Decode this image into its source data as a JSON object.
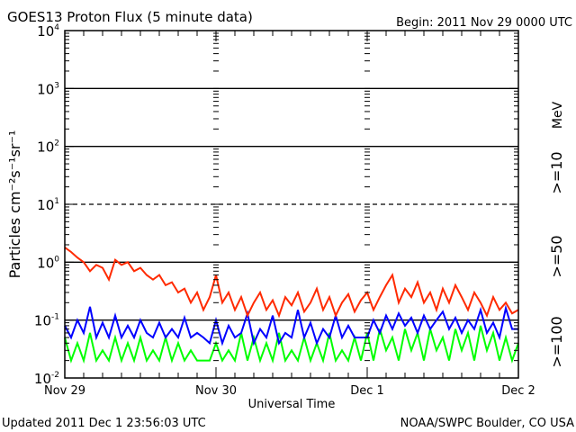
{
  "chart_data": {
    "type": "line",
    "title": "GOES13 Proton Flux (5 minute data)",
    "begin_label": "Begin: 2011 Nov 29 0000 UTC",
    "xlabel": "Universal Time",
    "ylabel": "Particles cm⁻²s⁻¹sr⁻¹",
    "yscale": "log",
    "ylim": [
      0.01,
      10000
    ],
    "y_ticks": [
      {
        "value": 10000,
        "base": "10",
        "exp": "4"
      },
      {
        "value": 1000,
        "base": "10",
        "exp": "3"
      },
      {
        "value": 100,
        "base": "10",
        "exp": "2"
      },
      {
        "value": 10,
        "base": "10",
        "exp": "1"
      },
      {
        "value": 1,
        "base": "10",
        "exp": "0"
      },
      {
        "value": 0.1,
        "base": "10",
        "exp": "-1"
      },
      {
        "value": 0.01,
        "base": "10",
        "exp": "-2"
      }
    ],
    "xlim_hours": [
      0,
      72
    ],
    "x_ticks": [
      {
        "hour": 0,
        "label": "Nov 29"
      },
      {
        "hour": 24,
        "label": "Nov 30"
      },
      {
        "hour": 48,
        "label": "Dec 1"
      },
      {
        "hour": 72,
        "label": "Dec 2"
      }
    ],
    "grid": {
      "solid": [
        1000,
        100,
        1,
        0.1
      ],
      "dashed": [
        10
      ]
    },
    "units_label": "MeV",
    "series": [
      {
        "name": ">=10",
        "color": "#ff2a00",
        "values": [
          1.8,
          1.5,
          1.2,
          1.0,
          0.7,
          0.9,
          0.8,
          0.5,
          1.1,
          0.9,
          1.0,
          0.7,
          0.8,
          0.6,
          0.5,
          0.6,
          0.4,
          0.45,
          0.3,
          0.35,
          0.2,
          0.3,
          0.15,
          0.25,
          0.6,
          0.2,
          0.3,
          0.15,
          0.25,
          0.12,
          0.2,
          0.3,
          0.15,
          0.22,
          0.12,
          0.25,
          0.18,
          0.3,
          0.14,
          0.2,
          0.35,
          0.15,
          0.25,
          0.12,
          0.2,
          0.28,
          0.14,
          0.22,
          0.3,
          0.15,
          0.25,
          0.4,
          0.6,
          0.2,
          0.35,
          0.25,
          0.45,
          0.2,
          0.3,
          0.15,
          0.35,
          0.2,
          0.4,
          0.25,
          0.15,
          0.3,
          0.2,
          0.12,
          0.25,
          0.15,
          0.2,
          0.13,
          0.15
        ]
      },
      {
        "name": ">=50",
        "color": "#0000ff",
        "values": [
          0.08,
          0.05,
          0.1,
          0.06,
          0.17,
          0.05,
          0.09,
          0.05,
          0.12,
          0.05,
          0.08,
          0.05,
          0.1,
          0.06,
          0.05,
          0.09,
          0.05,
          0.07,
          0.05,
          0.11,
          0.05,
          0.06,
          0.05,
          0.04,
          0.1,
          0.04,
          0.08,
          0.05,
          0.06,
          0.13,
          0.04,
          0.07,
          0.05,
          0.12,
          0.04,
          0.06,
          0.05,
          0.15,
          0.05,
          0.09,
          0.04,
          0.07,
          0.05,
          0.12,
          0.05,
          0.08,
          0.05,
          0.05,
          0.05,
          0.1,
          0.06,
          0.12,
          0.07,
          0.13,
          0.08,
          0.11,
          0.06,
          0.12,
          0.07,
          0.1,
          0.14,
          0.07,
          0.11,
          0.06,
          0.1,
          0.07,
          0.15,
          0.06,
          0.09,
          0.05,
          0.16,
          0.07,
          0.07
        ]
      },
      {
        "name": ">=100",
        "color": "#00ff00",
        "values": [
          0.05,
          0.02,
          0.04,
          0.02,
          0.06,
          0.02,
          0.03,
          0.02,
          0.05,
          0.02,
          0.04,
          0.02,
          0.05,
          0.02,
          0.03,
          0.02,
          0.05,
          0.02,
          0.04,
          0.02,
          0.03,
          0.02,
          0.02,
          0.02,
          0.04,
          0.02,
          0.03,
          0.02,
          0.06,
          0.02,
          0.05,
          0.02,
          0.04,
          0.02,
          0.06,
          0.02,
          0.03,
          0.02,
          0.05,
          0.02,
          0.04,
          0.02,
          0.06,
          0.02,
          0.03,
          0.02,
          0.05,
          0.02,
          0.06,
          0.02,
          0.07,
          0.03,
          0.05,
          0.02,
          0.07,
          0.03,
          0.06,
          0.02,
          0.07,
          0.03,
          0.05,
          0.02,
          0.07,
          0.03,
          0.06,
          0.02,
          0.08,
          0.03,
          0.06,
          0.02,
          0.05,
          0.02,
          0.04
        ]
      }
    ]
  },
  "footer": {
    "updated": "Updated 2011 Dec  1 23:56:03 UTC",
    "credit": "NOAA/SWPC Boulder, CO USA"
  }
}
